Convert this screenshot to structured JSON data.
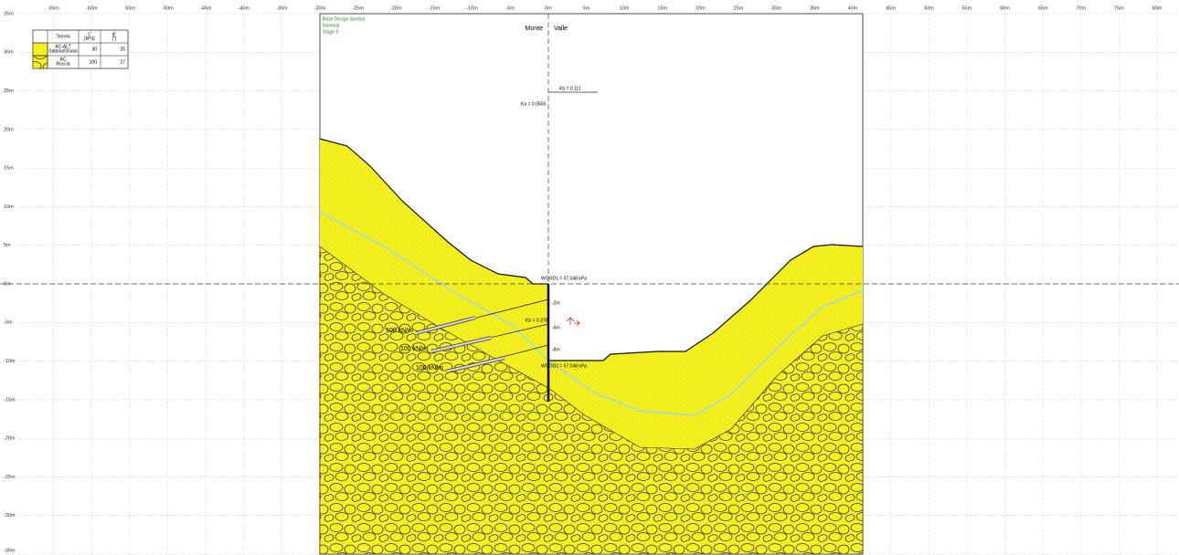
{
  "x_axis_labels": [
    "-65m",
    "-60m",
    "-55m",
    "-50m",
    "-45m",
    "-40m",
    "-35m",
    "-30m",
    "-25m",
    "-20m",
    "-15m",
    "-10m",
    "-5m",
    "0m",
    "5m",
    "10m",
    "15m",
    "20m",
    "25m",
    "30m",
    "35m",
    "40m",
    "45m",
    "50m",
    "55m",
    "60m",
    "65m",
    "70m",
    "75m",
    "80m"
  ],
  "y_axis_labels": [
    "35m",
    "30m",
    "25m",
    "20m",
    "15m",
    "10m",
    "5m",
    "0m",
    "-5m",
    "-10m",
    "-15m",
    "-20m",
    "-25m",
    "-30m",
    "-35m"
  ],
  "legend": {
    "headers": [
      "Terreni",
      "c'\n[kPa]",
      "φ'\n[°]"
    ],
    "rows": [
      [
        "AC-ALT\nSabbia/Ghiaia",
        "30",
        "25"
      ],
      [
        "AC\nRoccia",
        "100",
        "27"
      ]
    ]
  },
  "stage_info": [
    "Base Design Section",
    "Nominal",
    "Stage 9"
  ],
  "sides": [
    "Monte",
    "Valle"
  ],
  "annotations": {
    "kb_top": "Kb = 0.111",
    "ka_top": "Ka = 0.0556",
    "wood1": "WOOD1 = 57.048 kPa",
    "wood2": "WOOD2 = 57.048 kPa",
    "kb_mid": "Kb = 0.378",
    "depths": [
      "-2m",
      "-6m",
      "-8m"
    ]
  },
  "anchors": [
    "100 kN/m",
    "100 kN/m",
    "100 kN/m"
  ]
}
